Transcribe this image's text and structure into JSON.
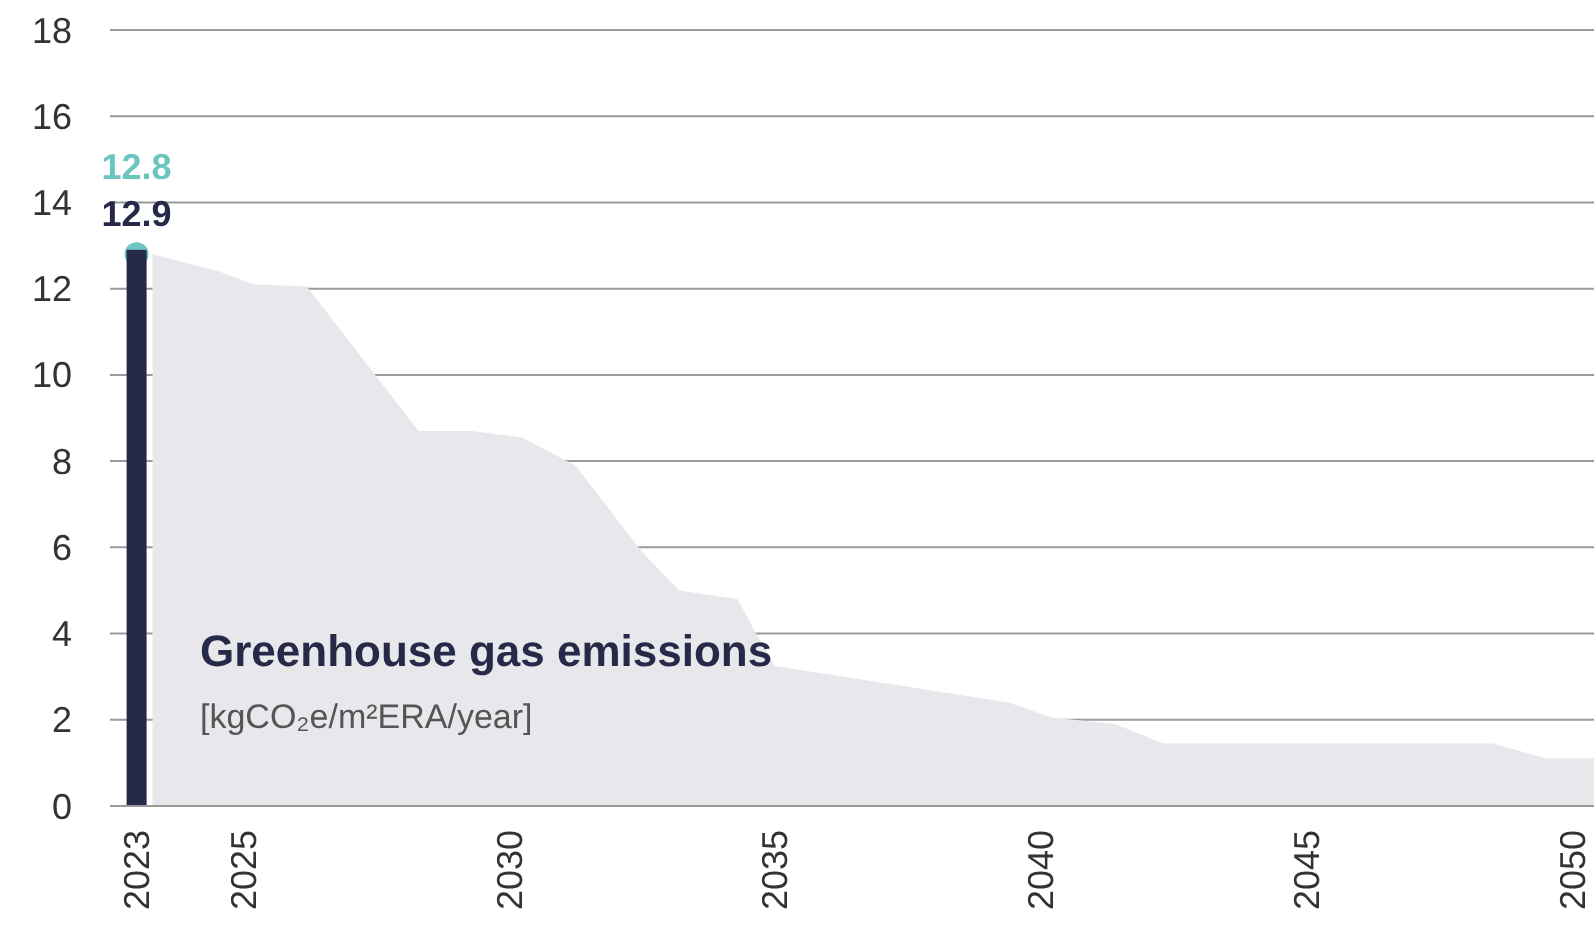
{
  "chart_data": {
    "type": "area",
    "title": "Greenhouse gas emissions",
    "subtitle": "[kgCO₂e/m²ERA/year]",
    "xlim": [
      2022.5,
      2050.4
    ],
    "xticks": [
      2023,
      2025,
      2030,
      2035,
      2040,
      2045,
      2050
    ],
    "ylim": [
      0,
      18
    ],
    "yticks": [
      0,
      2,
      4,
      6,
      8,
      10,
      12,
      14,
      16,
      18
    ],
    "grid": "y",
    "series": [
      {
        "color": "#e8e8ec",
        "x": [
          2023.3,
          2024.55,
          2025.2,
          2026.2,
          2028.3,
          2029.3,
          2030.25,
          2031.25,
          2032.5,
          2033.2,
          2034.3,
          2034.6,
          2035,
          2039.4,
          2040.2,
          2041.4,
          2042.3,
          2048.5,
          2049.5,
          2050.4
        ],
        "values": [
          12.8,
          12.4,
          12.1,
          12.05,
          8.7,
          8.7,
          8.55,
          7.9,
          5.9,
          5.0,
          4.8,
          4.1,
          3.25,
          2.4,
          2.05,
          1.9,
          1.45,
          1.45,
          1.1,
          1.1
        ]
      },
      {
        "type": "scatter",
        "color": "#6cc5be",
        "marker": "circle",
        "x": [
          2023
        ],
        "values": [
          12.8
        ],
        "value_labels": [
          "12.8"
        ]
      },
      {
        "type": "bar",
        "color": "#262a48",
        "x": [
          2023
        ],
        "values": [
          12.9
        ],
        "value_labels": [
          "12.9"
        ]
      }
    ]
  }
}
